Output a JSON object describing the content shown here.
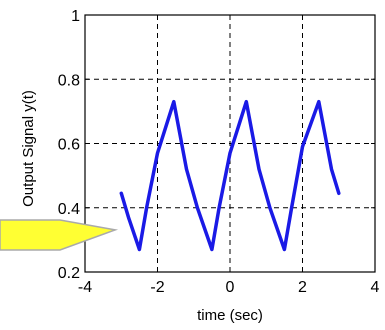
{
  "chart_data": {
    "type": "line",
    "xlabel": "time (sec)",
    "ylabel": "Output Signal y(t)",
    "xlim": [
      -4,
      4
    ],
    "ylim": [
      0.2,
      1
    ],
    "xticks": [
      -4,
      -2,
      0,
      2,
      4
    ],
    "yticks": [
      0.2,
      0.4,
      0.6,
      0.8,
      1
    ],
    "x_tick_labels": [
      "-4",
      "-2",
      "0",
      "2",
      "4"
    ],
    "y_tick_labels": [
      "0.2",
      "0.4",
      "0.6",
      "0.8",
      "1"
    ],
    "grid": true,
    "series": [
      {
        "color": "#1a1ae6",
        "x": [
          -3.0,
          -2.8,
          -2.5,
          -2.3,
          -2.0,
          -1.55,
          -1.2,
          -0.9,
          -0.5,
          -0.3,
          0.0,
          0.45,
          0.8,
          1.1,
          1.5,
          1.7,
          2.0,
          2.45,
          2.8,
          3.0
        ],
        "y": [
          0.445,
          0.37,
          0.27,
          0.4,
          0.57,
          0.73,
          0.52,
          0.4,
          0.27,
          0.4,
          0.57,
          0.73,
          0.52,
          0.4,
          0.27,
          0.4,
          0.59,
          0.73,
          0.52,
          0.445
        ]
      }
    ],
    "annotation": {
      "type": "callout",
      "fill": "#ffff33",
      "stroke": "#aaaaaa",
      "points_to": [
        -3.0,
        0.3
      ]
    }
  }
}
